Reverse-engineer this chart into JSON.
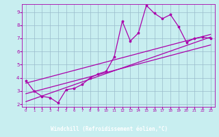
{
  "xlabel": "Windchill (Refroidissement éolien,°C)",
  "xlim": [
    -0.5,
    23.5
  ],
  "ylim": [
    1.8,
    9.6
  ],
  "xticks": [
    0,
    1,
    2,
    3,
    4,
    5,
    6,
    7,
    8,
    9,
    10,
    11,
    12,
    13,
    14,
    15,
    16,
    17,
    18,
    19,
    20,
    21,
    22,
    23
  ],
  "yticks": [
    2,
    3,
    4,
    5,
    6,
    7,
    8,
    9
  ],
  "bg_color": "#c8eef0",
  "plot_bg": "#c8eef0",
  "line_color": "#aa00aa",
  "grid_color": "#99bbcc",
  "xlabel_bg": "#6600aa",
  "xlabel_fg": "#ffffff",
  "series1_x": [
    0,
    1,
    2,
    3,
    4,
    5,
    6,
    7,
    8,
    9,
    10,
    11,
    12,
    13,
    14,
    15,
    16,
    17,
    18,
    19,
    20,
    21,
    22,
    23
  ],
  "series1_y": [
    3.8,
    3.0,
    2.6,
    2.5,
    2.1,
    3.1,
    3.2,
    3.5,
    4.0,
    4.3,
    4.5,
    5.6,
    8.3,
    6.8,
    7.4,
    9.5,
    8.9,
    8.5,
    8.8,
    7.9,
    6.7,
    7.0,
    7.1,
    7.0
  ],
  "series2_x": [
    0,
    23
  ],
  "series2_y": [
    2.8,
    6.5
  ],
  "series3_x": [
    0,
    23
  ],
  "series3_y": [
    3.6,
    7.3
  ],
  "series4_x": [
    0,
    23
  ],
  "series4_y": [
    2.2,
    7.1
  ]
}
